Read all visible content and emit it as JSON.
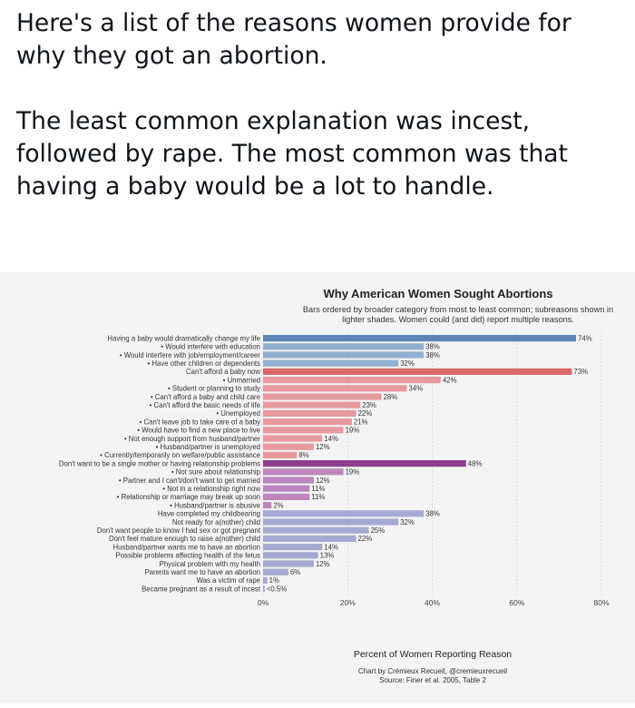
{
  "post": {
    "paragraph_1": "Here's a list of the reasons women provide for why they got an abortion.",
    "paragraph_2": "The least common explanation was incest, followed by rape. The most common was that having a baby would be a lot to handle."
  },
  "chart_data": {
    "type": "bar",
    "orientation": "horizontal",
    "title": "Why American Women Sought Abortions",
    "subtitle_lines": [
      "Bars ordered by broader category from most to least common; subreasons shown in",
      "lighter shades. Women could (and did) report multiple reasons."
    ],
    "xlabel": "Percent of Women Reporting Reason",
    "xlim": [
      0,
      80
    ],
    "xticks": [
      "0%",
      "20%",
      "40%",
      "60%",
      "80%"
    ],
    "grid": true,
    "credit": "Chart by Crémieux Recueil, @cremieuxrecueil",
    "source": "Source: Finer et al. 2005, Table 2",
    "colors": {
      "blue_main": "#5b85b5",
      "blue_sub": "#93afd0",
      "red_main": "#d9696b",
      "red_sub": "#e79a9d",
      "purple_main": "#8c3e8d",
      "purple_sub": "#bd86bd",
      "lavender": "#a6a9d2"
    },
    "bars": [
      {
        "label": "Having a baby would dramatically change my life",
        "value": 74,
        "value_label": "74%",
        "color": "blue_main"
      },
      {
        "label": "• Would interfere with education",
        "value": 38,
        "value_label": "38%",
        "color": "blue_sub"
      },
      {
        "label": "• Would interfere with job/employment/career",
        "value": 38,
        "value_label": "38%",
        "color": "blue_sub"
      },
      {
        "label": "• Have other children or dependents",
        "value": 32,
        "value_label": "32%",
        "color": "blue_sub"
      },
      {
        "label": "Can't afford a baby now",
        "value": 73,
        "value_label": "73%",
        "color": "red_main"
      },
      {
        "label": "• Unmarried",
        "value": 42,
        "value_label": "42%",
        "color": "red_sub"
      },
      {
        "label": "• Student or planning to study",
        "value": 34,
        "value_label": "34%",
        "color": "red_sub"
      },
      {
        "label": "• Can't afford a baby and child care",
        "value": 28,
        "value_label": "28%",
        "color": "red_sub"
      },
      {
        "label": "• Can't afford the basic needs of life",
        "value": 23,
        "value_label": "23%",
        "color": "red_sub"
      },
      {
        "label": "• Unemployed",
        "value": 22,
        "value_label": "22%",
        "color": "red_sub"
      },
      {
        "label": "• Can't leave job to take care of a baby",
        "value": 21,
        "value_label": "21%",
        "color": "red_sub"
      },
      {
        "label": "• Would have to find a new place to live",
        "value": 19,
        "value_label": "19%",
        "color": "red_sub"
      },
      {
        "label": "• Not enough support from husband/partner",
        "value": 14,
        "value_label": "14%",
        "color": "red_sub"
      },
      {
        "label": "• Husband/partner is unemployed",
        "value": 12,
        "value_label": "12%",
        "color": "red_sub"
      },
      {
        "label": "• Currently/temporarily on welfare/public assistance",
        "value": 8,
        "value_label": "8%",
        "color": "red_sub"
      },
      {
        "label": "Don't want to be a single mother or having relationship problems",
        "value": 48,
        "value_label": "48%",
        "color": "purple_main"
      },
      {
        "label": "• Not sure about relationship",
        "value": 19,
        "value_label": "19%",
        "color": "purple_sub"
      },
      {
        "label": "• Partner and I can't/don't want to get married",
        "value": 12,
        "value_label": "12%",
        "color": "purple_sub"
      },
      {
        "label": "• Not in a relationship right now",
        "value": 11,
        "value_label": "11%",
        "color": "purple_sub"
      },
      {
        "label": "• Relationship or marriage may break up soon",
        "value": 11,
        "value_label": "11%",
        "color": "purple_sub"
      },
      {
        "label": "• Husband/partner is abusive",
        "value": 2,
        "value_label": "2%",
        "color": "purple_sub"
      },
      {
        "label": "Have completed my childbearing",
        "value": 38,
        "value_label": "38%",
        "color": "lavender"
      },
      {
        "label": "Not ready for a(nother) child",
        "value": 32,
        "value_label": "32%",
        "color": "lavender"
      },
      {
        "label": "Don't want people to know I had sex or got pregnant",
        "value": 25,
        "value_label": "25%",
        "color": "lavender"
      },
      {
        "label": "Don't feel mature enough to raise a(nother) child",
        "value": 22,
        "value_label": "22%",
        "color": "lavender"
      },
      {
        "label": "Husband/partner wants me to have an abortion",
        "value": 14,
        "value_label": "14%",
        "color": "lavender"
      },
      {
        "label": "Possible problems affecting health of the fetus",
        "value": 13,
        "value_label": "13%",
        "color": "lavender"
      },
      {
        "label": "Physical problem with my health",
        "value": 12,
        "value_label": "12%",
        "color": "lavender"
      },
      {
        "label": "Parents want me to have an abortion",
        "value": 6,
        "value_label": "6%",
        "color": "lavender"
      },
      {
        "label": "Was a victim of rape",
        "value": 1,
        "value_label": "1%",
        "color": "lavender"
      },
      {
        "label": "Became pregnant as a result of incest",
        "value": 0.4,
        "value_label": "<0.5%",
        "color": "lavender"
      }
    ]
  }
}
